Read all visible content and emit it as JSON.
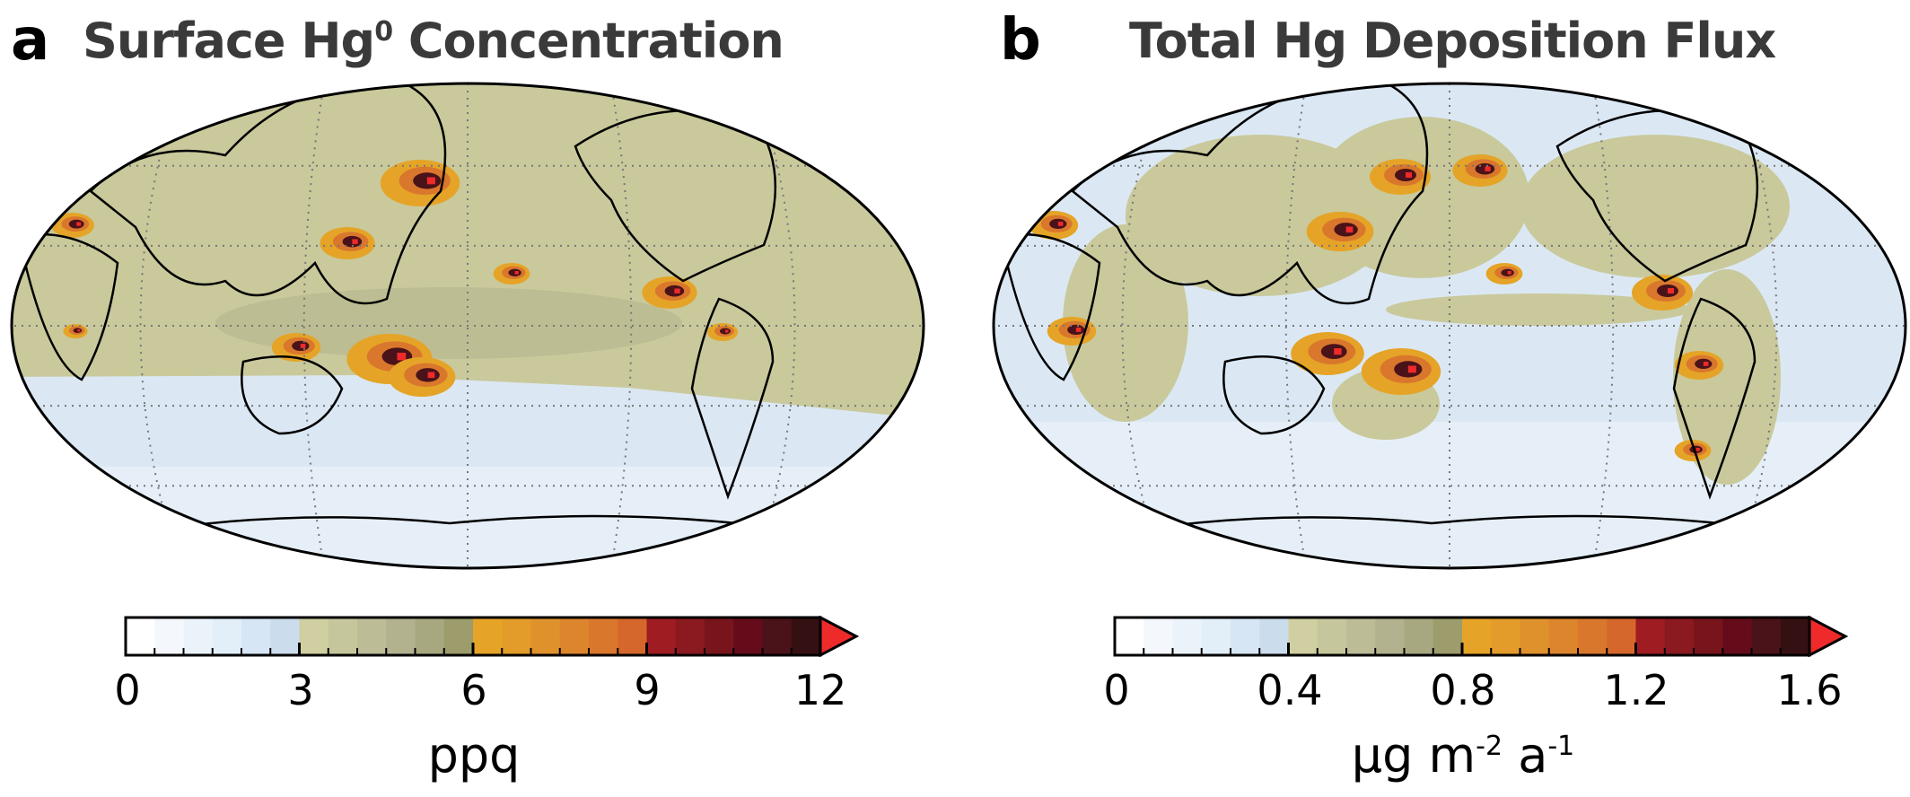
{
  "panels": [
    {
      "label": "a",
      "title": "Surface Hg",
      "title_sup": "0",
      "title_rest": " Concentration",
      "colorbar": {
        "ticks": [
          "0",
          "3",
          "6",
          "9",
          "12"
        ],
        "range": [
          0,
          12
        ],
        "extend": "max",
        "unit": "ppq"
      }
    },
    {
      "label": "b",
      "title": "Total Hg Deposition Flux",
      "colorbar": {
        "ticks": [
          "0",
          "0.4",
          "0.8",
          "1.2",
          "1.6"
        ],
        "range": [
          0,
          1.6
        ],
        "extend": "max",
        "unit_parts": [
          "μg m",
          "-2",
          " a",
          "-1"
        ]
      }
    }
  ],
  "colormap": [
    "#ffffff",
    "#f4f8fc",
    "#ebf3fa",
    "#e2eef8",
    "#d6e6f4",
    "#cbdcec",
    "#cfcfa1",
    "#c6c69c",
    "#bcbc97",
    "#b2b28f",
    "#a7a880",
    "#9c9c6c",
    "#e5a427",
    "#e39c2a",
    "#df912c",
    "#dc852d",
    "#d9772d",
    "#d6672c",
    "#9e1c22",
    "#8a1920",
    "#78141c",
    "#650b1a",
    "#4a1219",
    "#351012",
    "#2a0c0e"
  ],
  "over_color": "#ee2a2a",
  "colors": {
    "land_tan": "#c9c99c",
    "ocean_blue": "#dbe8f4",
    "ocean_light": "#e6eff8",
    "outline": "#000000"
  }
}
